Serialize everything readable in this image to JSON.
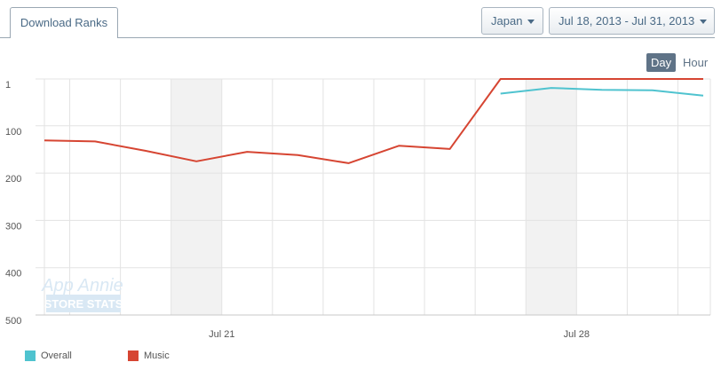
{
  "header": {
    "tab_label": "Download Ranks",
    "country": "Japan",
    "date_range": "Jul 18, 2013 - Jul 31, 2013",
    "granularity_options": [
      "Day",
      "Hour"
    ],
    "granularity_selected": "Day"
  },
  "watermark": {
    "line1": "App Annie",
    "line2": "STORE STATS"
  },
  "chart_data": {
    "type": "line",
    "title": "",
    "xlabel": "",
    "ylabel": "",
    "y_inverted": true,
    "ylim": [
      500,
      1
    ],
    "y_ticks": [
      1,
      100,
      200,
      300,
      400,
      500
    ],
    "x": [
      "2013-07-18",
      "2013-07-19",
      "2013-07-20",
      "2013-07-21",
      "2013-07-22",
      "2013-07-23",
      "2013-07-24",
      "2013-07-25",
      "2013-07-26",
      "2013-07-27",
      "2013-07-28",
      "2013-07-29",
      "2013-07-30",
      "2013-07-31"
    ],
    "x_tick_labels": [
      {
        "date": "2013-07-21",
        "label": "Jul 21"
      },
      {
        "date": "2013-07-28",
        "label": "Jul 28"
      }
    ],
    "weekend_bands": [
      [
        "2013-07-20",
        "2013-07-21"
      ],
      [
        "2013-07-27",
        "2013-07-28"
      ]
    ],
    "grid": true,
    "legend_position": "bottom-left",
    "series": [
      {
        "name": "Overall",
        "color": "#4fc3cf",
        "values": [
          null,
          null,
          null,
          null,
          null,
          null,
          null,
          null,
          null,
          32,
          20,
          24,
          25,
          36
        ]
      },
      {
        "name": "Music",
        "color": "#d64532",
        "values": [
          131,
          133,
          153,
          175,
          155,
          162,
          179,
          142,
          149,
          1,
          1,
          1,
          1,
          1
        ]
      }
    ]
  }
}
